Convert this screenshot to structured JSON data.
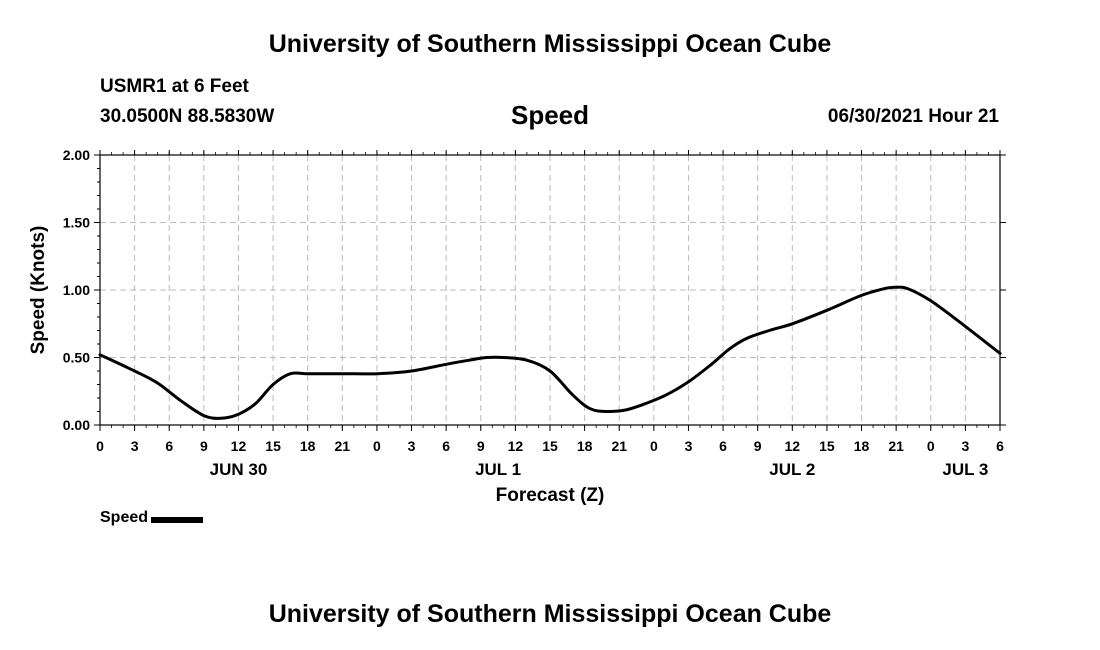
{
  "page": {
    "title_top": "University of Southern Mississippi Ocean Cube",
    "title_bottom": "University of Southern Mississippi Ocean Cube",
    "station": "USMR1 at 6 Feet",
    "coords": "30.0500N  88.5830W",
    "datetime": "06/30/2021 Hour 21"
  },
  "legend": {
    "label": "Speed"
  },
  "chart_data": {
    "type": "line",
    "title": "Speed",
    "xlabel": "Forecast (Z)",
    "ylabel": "Speed (Knots)",
    "ylim": [
      0,
      2
    ],
    "yticks": [
      "0.00",
      "0.50",
      "1.00",
      "1.50",
      "2.00"
    ],
    "ytick_values": [
      0,
      0.5,
      1,
      1.5,
      2
    ],
    "xlim": [
      0,
      78
    ],
    "x_unit": "hours from JUN 30 00Z",
    "xtick_labels": [
      "0",
      "3",
      "6",
      "9",
      "12",
      "15",
      "18",
      "21",
      "0",
      "3",
      "6",
      "9",
      "12",
      "15",
      "18",
      "21",
      "0",
      "3",
      "6",
      "9",
      "12",
      "15",
      "18",
      "21",
      "0",
      "3",
      "6"
    ],
    "date_labels": [
      {
        "label": "JUN 30",
        "x": 12
      },
      {
        "label": "JUL 1",
        "x": 34.5
      },
      {
        "label": "JUL 2",
        "x": 60
      },
      {
        "label": "JUL 3",
        "x": 75
      }
    ],
    "grid": true,
    "series": [
      {
        "name": "Speed",
        "color": "#000000",
        "x": [
          0,
          3,
          5,
          7,
          9,
          10.5,
          12,
          13.5,
          15,
          16.5,
          18,
          21,
          24,
          27,
          30,
          32,
          33.5,
          35,
          37,
          39,
          41,
          42.5,
          44,
          45.5,
          47,
          49,
          51,
          53,
          54.5,
          56,
          58,
          60,
          63,
          66,
          68,
          69,
          70,
          72,
          75,
          78
        ],
        "values": [
          0.52,
          0.4,
          0.31,
          0.18,
          0.07,
          0.05,
          0.08,
          0.16,
          0.3,
          0.38,
          0.38,
          0.38,
          0.38,
          0.4,
          0.45,
          0.48,
          0.5,
          0.5,
          0.48,
          0.4,
          0.22,
          0.12,
          0.1,
          0.11,
          0.15,
          0.22,
          0.32,
          0.45,
          0.56,
          0.64,
          0.7,
          0.75,
          0.85,
          0.96,
          1.01,
          1.02,
          1.01,
          0.92,
          0.73,
          0.53
        ]
      }
    ]
  }
}
